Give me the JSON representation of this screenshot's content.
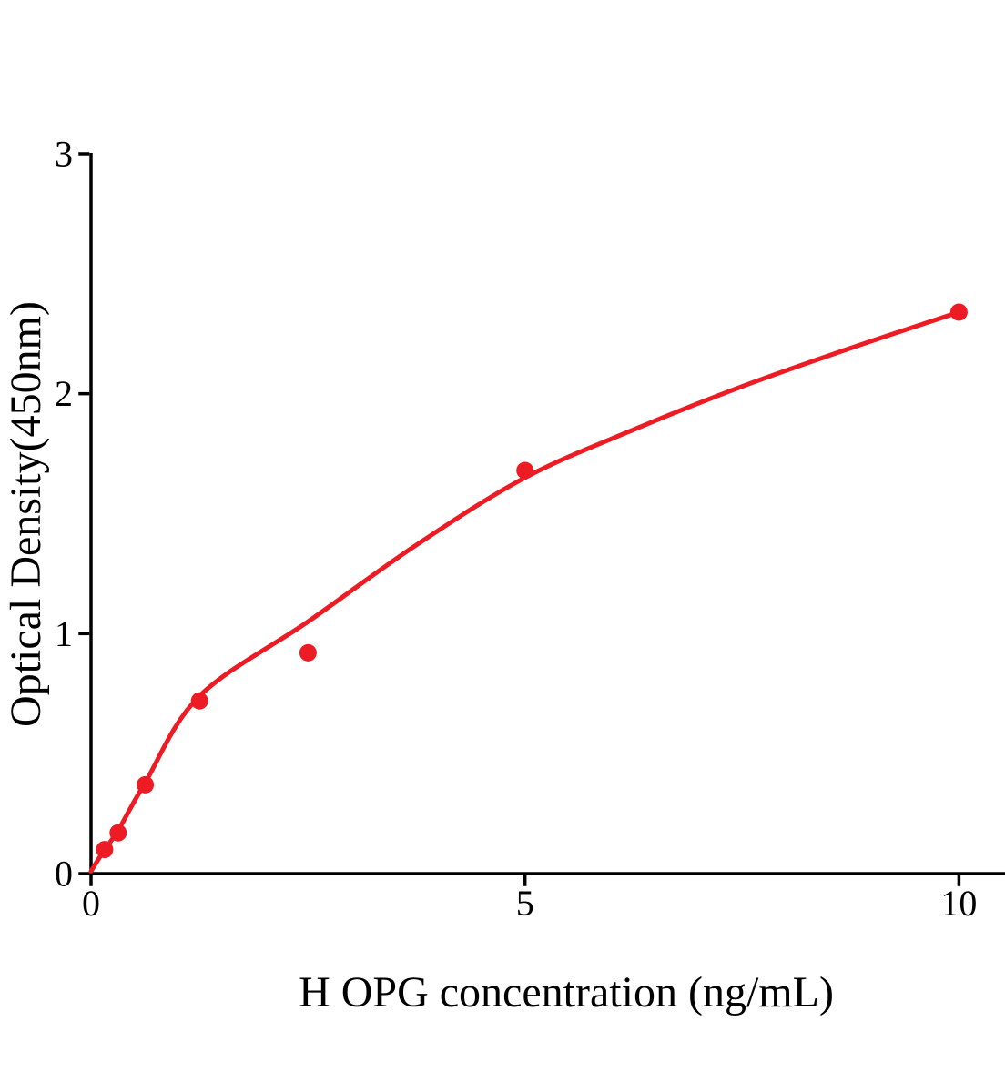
{
  "page": {
    "background": "#ffffff"
  },
  "chart_data": {
    "type": "scatter",
    "title": "",
    "xlabel": "H OPG concentration (ng/mL)",
    "ylabel": "Optical Density(450nm)",
    "xlim": [
      0,
      10.55
    ],
    "ylim": [
      0,
      3
    ],
    "xticks": [
      {
        "value": 0,
        "label": "0"
      },
      {
        "value": 5,
        "label": "5"
      },
      {
        "value": 10,
        "label": "10"
      }
    ],
    "yticks": [
      {
        "value": 0,
        "label": "0"
      },
      {
        "value": 1,
        "label": "1"
      },
      {
        "value": 2,
        "label": "2"
      },
      {
        "value": 3,
        "label": "3"
      }
    ],
    "grid": false,
    "legend": null,
    "colors": {
      "series": "#ED1C24",
      "axis": "#000000"
    },
    "series": [
      {
        "name": "standard-points",
        "type": "scatter",
        "color": "#ED1C24",
        "x": [
          0.156,
          0.3125,
          0.625,
          1.25,
          2.5,
          5,
          10
        ],
        "y": [
          0.1,
          0.17,
          0.37,
          0.72,
          0.92,
          1.68,
          2.34
        ]
      },
      {
        "name": "fit-curve",
        "type": "line",
        "color": "#ED1C24",
        "x": [
          0,
          0.156,
          0.3125,
          0.625,
          1.25,
          2.5,
          3.75,
          5,
          6.25,
          7.5,
          8.75,
          10
        ],
        "y": [
          0.01,
          0.1,
          0.18,
          0.38,
          0.74,
          1.05,
          1.37,
          1.65,
          1.85,
          2.03,
          2.19,
          2.34
        ]
      }
    ]
  }
}
